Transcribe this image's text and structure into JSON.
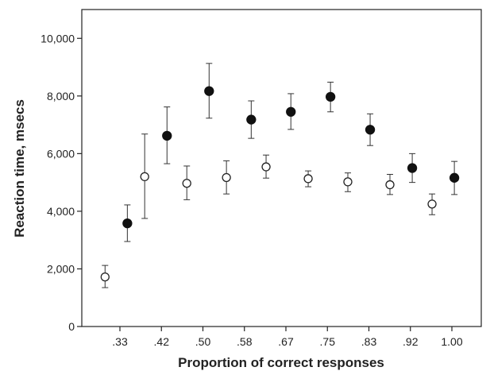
{
  "chart_data": {
    "type": "scatter",
    "xlabel": "Proportion of correct responses",
    "ylabel": "Reaction time, msecs",
    "ylim": [
      0,
      11000
    ],
    "yticks": [
      0,
      2000,
      4000,
      6000,
      8000,
      10000
    ],
    "ytick_labels": [
      "0",
      "2,000",
      "4,000",
      "6,000",
      "8,000",
      "10,000"
    ],
    "categories": [
      ".33",
      ".42",
      ".50",
      ".58",
      ".67",
      ".75",
      ".83",
      ".92",
      "1.00"
    ],
    "grid": false,
    "legend": "none",
    "series": [
      {
        "marker": "open-circle",
        "color": "#222222",
        "points": [
          {
            "x": 0.3,
            "y": 1720,
            "low": 1350,
            "high": 2120
          },
          {
            "x": 0.38,
            "y": 5200,
            "low": 3750,
            "high": 6680
          },
          {
            "x": 0.465,
            "y": 4970,
            "low": 4400,
            "high": 5570
          },
          {
            "x": 0.545,
            "y": 5170,
            "low": 4600,
            "high": 5750
          },
          {
            "x": 0.625,
            "y": 5540,
            "low": 5150,
            "high": 5950
          },
          {
            "x": 0.71,
            "y": 5130,
            "low": 4850,
            "high": 5400
          },
          {
            "x": 0.79,
            "y": 5020,
            "low": 4680,
            "high": 5330
          },
          {
            "x": 0.875,
            "y": 4920,
            "low": 4580,
            "high": 5280
          },
          {
            "x": 0.96,
            "y": 4250,
            "low": 3880,
            "high": 4600
          }
        ]
      },
      {
        "marker": "filled-circle",
        "color": "#111111",
        "points": [
          {
            "x": 0.345,
            "y": 3580,
            "low": 2950,
            "high": 4220
          },
          {
            "x": 0.425,
            "y": 6620,
            "low": 5650,
            "high": 7620
          },
          {
            "x": 0.51,
            "y": 8170,
            "low": 7230,
            "high": 9130
          },
          {
            "x": 0.595,
            "y": 7180,
            "low": 6530,
            "high": 7830
          },
          {
            "x": 0.675,
            "y": 7450,
            "low": 6840,
            "high": 8080
          },
          {
            "x": 0.755,
            "y": 7970,
            "low": 7450,
            "high": 8480
          },
          {
            "x": 0.835,
            "y": 6830,
            "low": 6280,
            "high": 7380
          },
          {
            "x": 0.92,
            "y": 5500,
            "low": 5000,
            "high": 6000
          },
          {
            "x": 1.005,
            "y": 5160,
            "low": 4580,
            "high": 5730
          }
        ]
      }
    ]
  }
}
